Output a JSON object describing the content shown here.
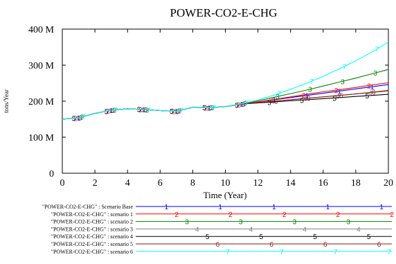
{
  "chart_data": {
    "type": "line",
    "title": "POWER-CO2-E-CHG",
    "xlabel": "Time (Year)",
    "ylabel": "tons/Year",
    "xlim": [
      0,
      20
    ],
    "ylim": [
      0,
      400
    ],
    "x_ticks": [
      "0",
      "2",
      "4",
      "6",
      "8",
      "10",
      "12",
      "14",
      "16",
      "18",
      "20"
    ],
    "y_ticks": [
      {
        "v": 0,
        "label": "0"
      },
      {
        "v": 100,
        "label": "100 M"
      },
      {
        "v": 200,
        "label": "200 M"
      },
      {
        "v": 300,
        "label": "300 M"
      },
      {
        "v": 400,
        "label": "400 M"
      }
    ],
    "grid": false,
    "legend_position": "bottom",
    "x": [
      0,
      1,
      2,
      3,
      4,
      5,
      6,
      7,
      8,
      9,
      10,
      11,
      12,
      13,
      14,
      15,
      16,
      17,
      18,
      19,
      20
    ],
    "series": [
      {
        "name": "\"POWER-CO2-E-CHG\" : Scenario Base",
        "marker": "1",
        "color": "#0000ff",
        "values": [
          150,
          154,
          166,
          175,
          179,
          177,
          174,
          172,
          183,
          182,
          185,
          192,
          198,
          204,
          210,
          216,
          222,
          228,
          234,
          240,
          246
        ]
      },
      {
        "name": "\"POWER-CO2-E-CHG\" : scenario 1",
        "marker": "2",
        "color": "#ff0000",
        "values": [
          150,
          154,
          166,
          175,
          179,
          177,
          174,
          172,
          183,
          182,
          185,
          192,
          198,
          205,
          212,
          219,
          226,
          232,
          238,
          245,
          251
        ]
      },
      {
        "name": "\"POWER-CO2-E-CHG\" : scenario 2",
        "marker": "3",
        "color": "#008000",
        "values": [
          150,
          154,
          166,
          175,
          179,
          177,
          174,
          172,
          183,
          182,
          185,
          192,
          201,
          211,
          221,
          231,
          242,
          253,
          264,
          276,
          288
        ]
      },
      {
        "name": "\"POWER-CO2-E-CHG\" : scenario 3",
        "marker": "4",
        "color": "#808080",
        "values": [
          150,
          154,
          166,
          175,
          179,
          177,
          174,
          172,
          183,
          182,
          185,
          192,
          196,
          200,
          204,
          208,
          212,
          216,
          220,
          224,
          228
        ]
      },
      {
        "name": "\"POWER-CO2-E-CHG\" : scenario 4",
        "marker": "5",
        "color": "#000000",
        "values": [
          150,
          154,
          166,
          175,
          179,
          177,
          174,
          172,
          183,
          182,
          185,
          192,
          195,
          198,
          201,
          204,
          207,
          210,
          213,
          216,
          219
        ]
      },
      {
        "name": "\"POWER-CO2-E-CHG\" : scenario 5",
        "marker": "6",
        "color": "#8b1a1a",
        "values": [
          150,
          154,
          166,
          175,
          179,
          177,
          174,
          172,
          183,
          182,
          185,
          192,
          196,
          200,
          204,
          208,
          212,
          216,
          220,
          225,
          230
        ]
      },
      {
        "name": "\"POWER-CO2-E-CHG\" : scenario 6",
        "marker": "7",
        "color": "#00ffff",
        "values": [
          150,
          154,
          166,
          175,
          179,
          177,
          174,
          172,
          183,
          182,
          185,
          193,
          203,
          217,
          233,
          250,
          269,
          290,
          312,
          337,
          364
        ]
      }
    ]
  }
}
